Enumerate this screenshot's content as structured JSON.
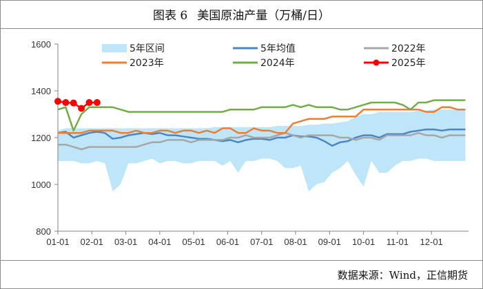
{
  "figure": {
    "label": "图表 6",
    "title": "美国原油产量（万桶/日）"
  },
  "source": "数据来源：Wind，正信期货",
  "chart_data": {
    "type": "line",
    "title": "美国原油产量（万桶/日）",
    "xlabel": "",
    "ylabel": "",
    "x_tick_labels": [
      "01-01",
      "02-01",
      "03-01",
      "04-01",
      "05-01",
      "06-01",
      "07-01",
      "08-01",
      "09-01",
      "10-01",
      "11-01",
      "12-01"
    ],
    "y_ticks": [
      800,
      1000,
      1200,
      1400,
      1600
    ],
    "ylim": [
      800,
      1600
    ],
    "x_unit": "week index (0 = 01-01, 52 weeks per year)",
    "xlim": [
      0,
      52.4
    ],
    "band": {
      "name": "5年区间",
      "color": "#bfe6f8",
      "x": [
        0,
        1,
        2,
        3,
        4,
        5,
        6,
        7,
        8,
        9,
        10,
        11,
        12,
        13,
        14,
        15,
        16,
        17,
        18,
        19,
        20,
        21,
        22,
        23,
        24,
        25,
        26,
        27,
        28,
        29,
        30,
        31,
        32,
        33,
        34,
        35,
        36,
        37,
        38,
        39,
        40,
        41,
        42,
        43,
        44,
        45,
        46,
        47,
        48,
        49,
        50,
        51,
        52
      ],
      "lower": [
        1100,
        1100,
        1100,
        1090,
        1090,
        1100,
        1090,
        970,
        1000,
        1090,
        1090,
        1100,
        1110,
        1090,
        1100,
        1100,
        1090,
        1090,
        1100,
        1100,
        1100,
        1080,
        1100,
        1050,
        1100,
        1100,
        1110,
        1110,
        1100,
        1070,
        1070,
        1080,
        970,
        1000,
        1010,
        1050,
        1070,
        1100,
        1040,
        990,
        1100,
        1050,
        1050,
        1080,
        1100,
        1100,
        1110,
        1110,
        1100,
        1100,
        1100,
        1100,
        1100
      ],
      "upper": [
        1230,
        1240,
        1240,
        1240,
        1240,
        1240,
        1240,
        1240,
        1240,
        1240,
        1240,
        1240,
        1240,
        1240,
        1240,
        1240,
        1240,
        1240,
        1240,
        1240,
        1245,
        1245,
        1245,
        1245,
        1245,
        1245,
        1245,
        1245,
        1250,
        1250,
        1250,
        1250,
        1255,
        1255,
        1260,
        1260,
        1265,
        1270,
        1290,
        1300,
        1300,
        1310,
        1310,
        1310,
        1310,
        1310,
        1315,
        1315,
        1320,
        1320,
        1320,
        1320,
        1320
      ]
    },
    "series": [
      {
        "name": "5年均值",
        "color": "#4a86c5",
        "stroke_width": 2.5,
        "x": [
          0,
          1,
          2,
          3,
          4,
          5,
          6,
          7,
          8,
          9,
          10,
          11,
          12,
          13,
          14,
          15,
          16,
          17,
          18,
          19,
          20,
          21,
          22,
          23,
          24,
          25,
          26,
          27,
          28,
          29,
          30,
          31,
          32,
          33,
          34,
          35,
          36,
          37,
          38,
          39,
          40,
          41,
          42,
          43,
          44,
          45,
          46,
          47,
          48,
          49,
          50,
          51,
          52
        ],
        "values": [
          1220,
          1225,
          1200,
          1210,
          1220,
          1225,
          1220,
          1195,
          1200,
          1210,
          1215,
          1220,
          1215,
          1220,
          1210,
          1210,
          1205,
          1200,
          1195,
          1195,
          1190,
          1185,
          1190,
          1180,
          1190,
          1195,
          1195,
          1190,
          1200,
          1200,
          1210,
          1205,
          1205,
          1200,
          1185,
          1165,
          1180,
          1185,
          1200,
          1210,
          1210,
          1200,
          1215,
          1215,
          1215,
          1225,
          1230,
          1235,
          1235,
          1230,
          1235,
          1235,
          1235
        ]
      },
      {
        "name": "2022年",
        "color": "#a6a6a6",
        "stroke_width": 2.5,
        "x": [
          0,
          1,
          2,
          3,
          4,
          5,
          6,
          7,
          8,
          9,
          10,
          11,
          12,
          13,
          14,
          15,
          16,
          17,
          18,
          19,
          20,
          21,
          22,
          23,
          24,
          25,
          26,
          27,
          28,
          29,
          30,
          31,
          32,
          33,
          34,
          35,
          36,
          37,
          38,
          39,
          40,
          41,
          42,
          43,
          44,
          45,
          46,
          47,
          48,
          49,
          50,
          51,
          52
        ],
        "values": [
          1170,
          1170,
          1160,
          1150,
          1160,
          1160,
          1160,
          1160,
          1160,
          1160,
          1160,
          1170,
          1180,
          1180,
          1190,
          1190,
          1190,
          1180,
          1190,
          1190,
          1190,
          1190,
          1200,
          1200,
          1210,
          1200,
          1200,
          1200,
          1210,
          1220,
          1210,
          1200,
          1210,
          1210,
          1210,
          1210,
          1200,
          1200,
          1190,
          1200,
          1200,
          1190,
          1210,
          1210,
          1210,
          1210,
          1220,
          1210,
          1210,
          1200,
          1210,
          1210,
          1210
        ]
      },
      {
        "name": "2023年",
        "color": "#ed7d31",
        "stroke_width": 2.5,
        "x": [
          0,
          1,
          2,
          3,
          4,
          5,
          6,
          7,
          8,
          9,
          10,
          11,
          12,
          13,
          14,
          15,
          16,
          17,
          18,
          19,
          20,
          21,
          22,
          23,
          24,
          25,
          26,
          27,
          28,
          29,
          30,
          31,
          32,
          33,
          34,
          35,
          36,
          37,
          38,
          39,
          40,
          41,
          42,
          43,
          44,
          45,
          46,
          47,
          48,
          49,
          50,
          51,
          52
        ],
        "values": [
          1220,
          1220,
          1220,
          1220,
          1230,
          1230,
          1230,
          1230,
          1220,
          1220,
          1230,
          1220,
          1220,
          1230,
          1230,
          1220,
          1230,
          1230,
          1220,
          1230,
          1220,
          1240,
          1240,
          1220,
          1220,
          1240,
          1230,
          1230,
          1220,
          1220,
          1260,
          1270,
          1280,
          1280,
          1280,
          1290,
          1290,
          1290,
          1290,
          1320,
          1320,
          1320,
          1320,
          1320,
          1320,
          1320,
          1320,
          1310,
          1310,
          1330,
          1330,
          1320,
          1320
        ]
      },
      {
        "name": "2024年",
        "color": "#70ad47",
        "stroke_width": 2.5,
        "x": [
          0,
          1,
          2,
          3,
          4,
          5,
          6,
          7,
          8,
          9,
          10,
          11,
          12,
          13,
          14,
          15,
          16,
          17,
          18,
          19,
          20,
          21,
          22,
          23,
          24,
          25,
          26,
          27,
          28,
          29,
          30,
          31,
          32,
          33,
          34,
          35,
          36,
          37,
          38,
          39,
          40,
          41,
          42,
          43,
          44,
          45,
          46,
          47,
          48,
          49,
          50,
          51,
          52
        ],
        "values": [
          1320,
          1330,
          1230,
          1300,
          1330,
          1330,
          1330,
          1330,
          1320,
          1310,
          1310,
          1310,
          1310,
          1310,
          1310,
          1310,
          1310,
          1310,
          1310,
          1310,
          1310,
          1310,
          1320,
          1320,
          1320,
          1320,
          1330,
          1330,
          1330,
          1330,
          1340,
          1330,
          1340,
          1330,
          1330,
          1330,
          1320,
          1320,
          1330,
          1340,
          1350,
          1350,
          1350,
          1350,
          1340,
          1320,
          1350,
          1350,
          1360,
          1360,
          1360,
          1360,
          1360
        ]
      },
      {
        "name": "2025年",
        "color": "#ff0000",
        "stroke_width": 2.5,
        "markers": true,
        "x": [
          0,
          1,
          2,
          3,
          4,
          5
        ],
        "values": [
          1355,
          1350,
          1348,
          1325,
          1350,
          1350
        ]
      }
    ],
    "legend": {
      "position": "top",
      "columns": 3
    }
  }
}
